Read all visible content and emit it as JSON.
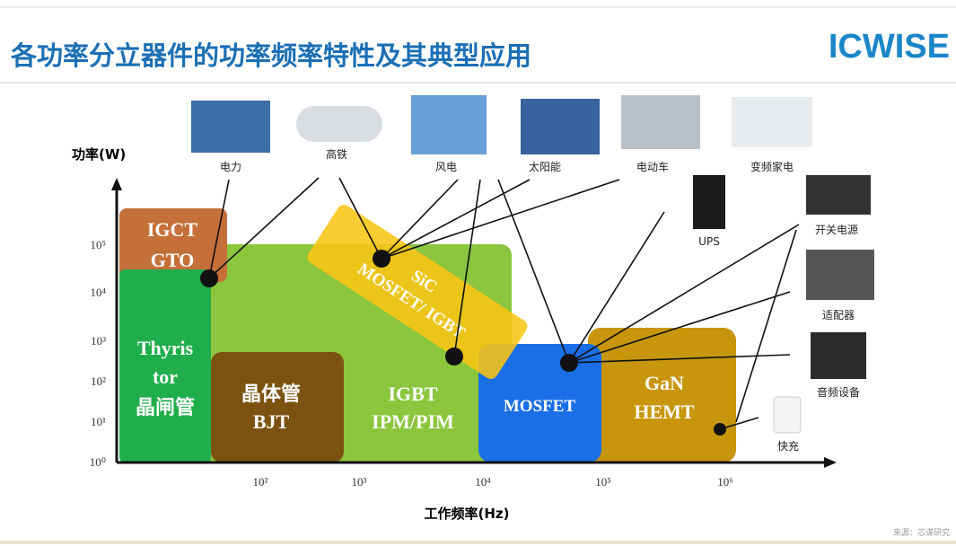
{
  "header": {
    "title": "各功率分立器件的功率频率特性及其典型应用",
    "logo": "ICWISE"
  },
  "axes": {
    "y_label": "功率(W)",
    "x_label": "工作频率(Hz)",
    "y_ticks": [
      "10⁰",
      "10¹",
      "10²",
      "10³",
      "10⁴",
      "10⁵"
    ],
    "x_ticks": [
      "10²",
      "10³",
      "10⁴",
      "10⁵",
      "10⁶"
    ]
  },
  "regions": [
    {
      "lines": [
        "IGCT",
        "GTO"
      ]
    },
    {
      "lines": [
        "Thyris",
        "tor",
        "晶闸管"
      ]
    },
    {
      "lines": [
        "IGBT",
        "IPM/PIM"
      ]
    },
    {
      "lines": [
        "晶体管",
        "BJT"
      ]
    },
    {
      "lines": [
        "SiC",
        "MOSFET/ IGBT"
      ]
    },
    {
      "lines": [
        "MOSFET"
      ]
    },
    {
      "lines": [
        "GaN",
        "HEMT"
      ]
    }
  ],
  "applications": [
    "电力",
    "高铁",
    "风电",
    "太阳能",
    "电动车",
    "变频家电",
    "UPS",
    "开关电源",
    "适配器",
    "音频设备",
    "快充"
  ],
  "source": "来源：芯谋研究"
}
